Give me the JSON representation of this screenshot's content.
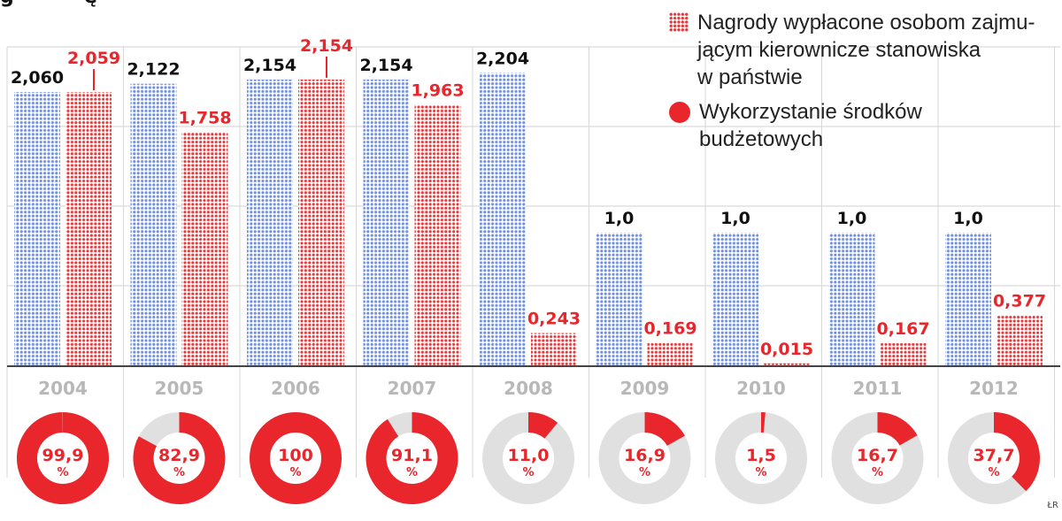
{
  "chart_data": {
    "type": "bar",
    "categories": [
      "2004",
      "2005",
      "2006",
      "2007",
      "2008",
      "2009",
      "2010",
      "2011",
      "2012"
    ],
    "series": [
      {
        "name": "Nagrody wypłacone osobom zajmu-\njącym kierownicze stanowiska\nw państwie",
        "values": [
          2.06,
          2.122,
          2.154,
          2.154,
          2.204,
          1.0,
          1.0,
          1.0,
          1.0
        ],
        "labels": [
          "2,060",
          "2,122",
          "2,154",
          "2,154",
          "2,204",
          "1,0",
          "1,0",
          "1,0",
          "1,0"
        ],
        "color": "#6f8fe0"
      },
      {
        "name": "",
        "values": [
          2.059,
          1.758,
          2.154,
          1.963,
          0.243,
          0.169,
          0.015,
          0.167,
          0.377
        ],
        "labels": [
          "2,059",
          "1,758",
          "2,154",
          "1,963",
          "0,243",
          "0,169",
          "0,015",
          "0,167",
          "0,377"
        ],
        "color": "#e8383a"
      }
    ],
    "donuts": {
      "name": "Wykorzystanie środków\nbudżetowych",
      "values": [
        99.9,
        82.9,
        100,
        91.1,
        11.0,
        16.9,
        1.5,
        16.7,
        37.7
      ],
      "labels": [
        "99,9",
        "82,9",
        "100",
        "91,1",
        "11,0",
        "16,9",
        "1,5",
        "16,7",
        "37,7"
      ],
      "unit": "%",
      "fill_color": "#e8262c",
      "track_color": "#e0e0e0"
    },
    "ylim": [
      0,
      2.4
    ],
    "grid": true,
    "legend_position": "top-right",
    "title": "",
    "xlabel": "",
    "ylabel": ""
  },
  "source": "ŁR"
}
